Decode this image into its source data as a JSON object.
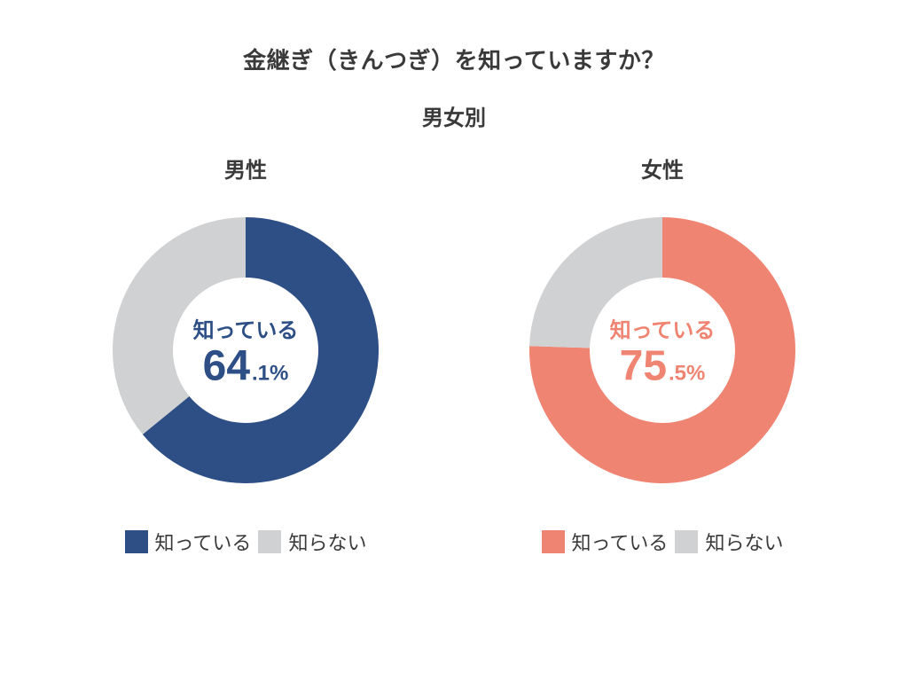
{
  "title": "金継ぎ（きんつぎ）を知っていますか？",
  "subtitle": "男女別",
  "background_color": "#ffffff",
  "text_color": "#3a3a3a",
  "charts": [
    {
      "heading": "男性",
      "type": "donut",
      "center_label": "知っている",
      "center_big": "64",
      "center_small": ".1%",
      "center_color": "#2e4f86",
      "segments": [
        {
          "label": "知っている",
          "value": 64.1,
          "color": "#2e4f86"
        },
        {
          "label": "知らない",
          "value": 35.9,
          "color": "#d0d1d2"
        }
      ],
      "legend": [
        {
          "color": "#2e4f86",
          "label": "知っている"
        },
        {
          "color": "#d0d1d2",
          "label": "知らない"
        }
      ],
      "donut_outer_r": 150,
      "donut_inner_r": 82
    },
    {
      "heading": "女性",
      "type": "donut",
      "center_label": "知っている",
      "center_big": "75",
      "center_small": ".5%",
      "center_color": "#f08472",
      "segments": [
        {
          "label": "知っている",
          "value": 75.5,
          "color": "#f08472"
        },
        {
          "label": "知らない",
          "value": 24.5,
          "color": "#d0d1d2"
        }
      ],
      "legend": [
        {
          "color": "#f08472",
          "label": "知っている"
        },
        {
          "color": "#d0d1d2",
          "label": "知らない"
        }
      ],
      "donut_outer_r": 150,
      "donut_inner_r": 82
    }
  ]
}
